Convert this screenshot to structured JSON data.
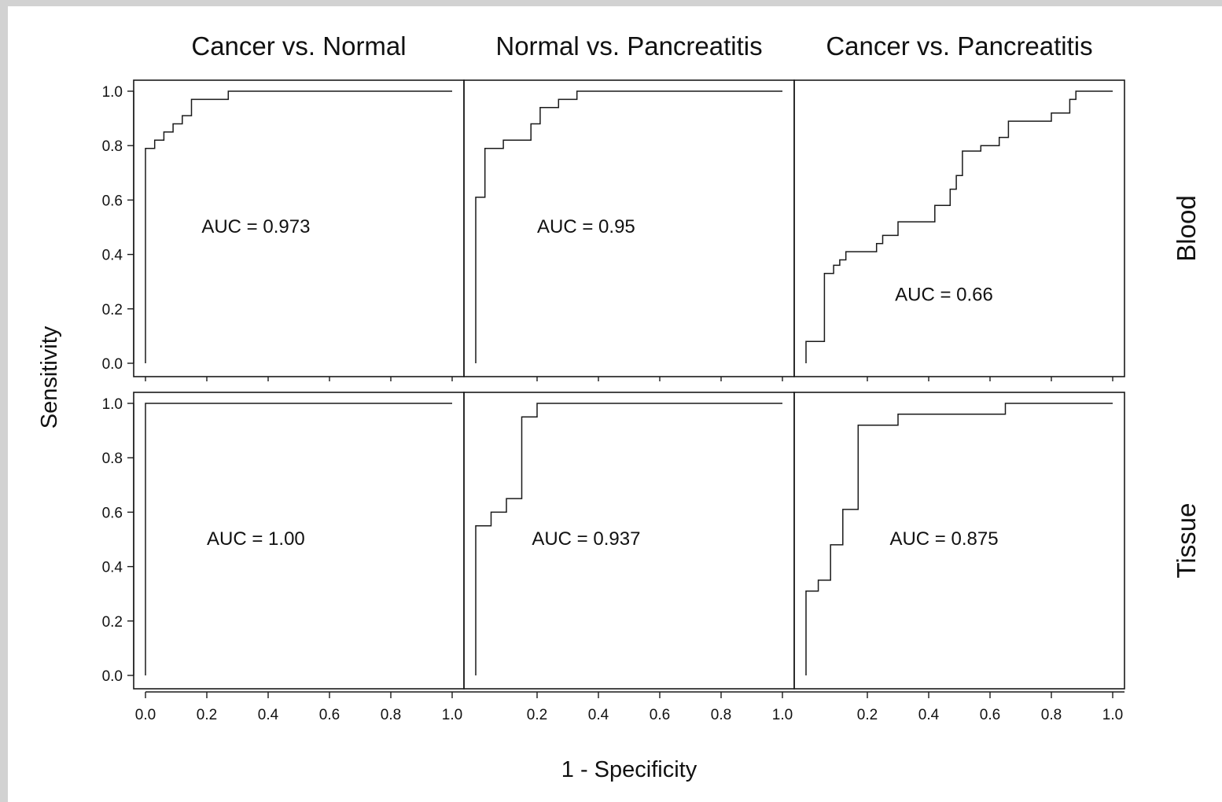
{
  "chart_data": {
    "type": "line",
    "title": "",
    "xlabel": "1 - Specificity",
    "ylabel": "Sensitivity",
    "xlim": [
      0,
      1
    ],
    "ylim": [
      0,
      1
    ],
    "grid": false,
    "columns": [
      "Cancer vs. Normal",
      "Normal vs. Pancreatitis",
      "Cancer vs. Pancreatitis"
    ],
    "rows": [
      "Blood",
      "Tissue"
    ],
    "y_ticks": [
      "0.0",
      "0.2",
      "0.4",
      "0.6",
      "0.8",
      "1.0"
    ],
    "x_ticks_first": [
      "0.0",
      "0.2",
      "0.4",
      "0.6",
      "0.8",
      "1.0"
    ],
    "x_ticks_other": [
      "0.2",
      "0.4",
      "0.6",
      "0.8",
      "1.0"
    ],
    "panels": [
      {
        "row": "Blood",
        "column": "Cancer vs. Normal",
        "auc_label": "AUC = 0.973",
        "points": [
          [
            0,
            0
          ],
          [
            0,
            0.79
          ],
          [
            0.03,
            0.79
          ],
          [
            0.03,
            0.82
          ],
          [
            0.06,
            0.82
          ],
          [
            0.06,
            0.85
          ],
          [
            0.09,
            0.85
          ],
          [
            0.09,
            0.88
          ],
          [
            0.12,
            0.88
          ],
          [
            0.12,
            0.91
          ],
          [
            0.15,
            0.91
          ],
          [
            0.15,
            0.97
          ],
          [
            0.27,
            0.97
          ],
          [
            0.27,
            1.0
          ],
          [
            1.0,
            1.0
          ]
        ]
      },
      {
        "row": "Blood",
        "column": "Normal vs. Pancreatitis",
        "auc_label": "AUC = 0.95",
        "points": [
          [
            0,
            0
          ],
          [
            0,
            0.61
          ],
          [
            0.03,
            0.61
          ],
          [
            0.03,
            0.79
          ],
          [
            0.09,
            0.79
          ],
          [
            0.09,
            0.82
          ],
          [
            0.18,
            0.82
          ],
          [
            0.18,
            0.88
          ],
          [
            0.21,
            0.88
          ],
          [
            0.21,
            0.94
          ],
          [
            0.27,
            0.94
          ],
          [
            0.27,
            0.97
          ],
          [
            0.33,
            0.97
          ],
          [
            0.33,
            1.0
          ],
          [
            1.0,
            1.0
          ]
        ]
      },
      {
        "row": "Blood",
        "column": "Cancer vs. Pancreatitis",
        "auc_label": "AUC = 0.66",
        "points": [
          [
            0,
            0
          ],
          [
            0,
            0.08
          ],
          [
            0.06,
            0.08
          ],
          [
            0.06,
            0.33
          ],
          [
            0.09,
            0.33
          ],
          [
            0.09,
            0.36
          ],
          [
            0.11,
            0.36
          ],
          [
            0.11,
            0.38
          ],
          [
            0.13,
            0.38
          ],
          [
            0.13,
            0.41
          ],
          [
            0.23,
            0.41
          ],
          [
            0.23,
            0.44
          ],
          [
            0.25,
            0.44
          ],
          [
            0.25,
            0.47
          ],
          [
            0.3,
            0.47
          ],
          [
            0.3,
            0.52
          ],
          [
            0.42,
            0.52
          ],
          [
            0.42,
            0.58
          ],
          [
            0.47,
            0.58
          ],
          [
            0.47,
            0.64
          ],
          [
            0.49,
            0.64
          ],
          [
            0.49,
            0.69
          ],
          [
            0.51,
            0.69
          ],
          [
            0.51,
            0.78
          ],
          [
            0.57,
            0.78
          ],
          [
            0.57,
            0.8
          ],
          [
            0.63,
            0.8
          ],
          [
            0.63,
            0.83
          ],
          [
            0.66,
            0.83
          ],
          [
            0.66,
            0.89
          ],
          [
            0.8,
            0.89
          ],
          [
            0.8,
            0.92
          ],
          [
            0.86,
            0.92
          ],
          [
            0.86,
            0.97
          ],
          [
            0.88,
            0.97
          ],
          [
            0.88,
            1.0
          ],
          [
            1.0,
            1.0
          ]
        ]
      },
      {
        "row": "Tissue",
        "column": "Cancer vs. Normal",
        "auc_label": "AUC = 1.00",
        "points": [
          [
            0,
            0
          ],
          [
            0,
            1.0
          ],
          [
            1.0,
            1.0
          ]
        ]
      },
      {
        "row": "Tissue",
        "column": "Normal vs. Pancreatitis",
        "auc_label": "AUC = 0.937",
        "points": [
          [
            0,
            0
          ],
          [
            0,
            0.55
          ],
          [
            0.05,
            0.55
          ],
          [
            0.05,
            0.6
          ],
          [
            0.1,
            0.6
          ],
          [
            0.1,
            0.65
          ],
          [
            0.15,
            0.65
          ],
          [
            0.15,
            0.95
          ],
          [
            0.2,
            0.95
          ],
          [
            0.2,
            1.0
          ],
          [
            1.0,
            1.0
          ]
        ]
      },
      {
        "row": "Tissue",
        "column": "Cancer vs. Pancreatitis",
        "auc_label": "AUC = 0.875",
        "points": [
          [
            0,
            0
          ],
          [
            0,
            0.31
          ],
          [
            0.04,
            0.31
          ],
          [
            0.04,
            0.35
          ],
          [
            0.08,
            0.35
          ],
          [
            0.08,
            0.48
          ],
          [
            0.12,
            0.48
          ],
          [
            0.12,
            0.61
          ],
          [
            0.17,
            0.61
          ],
          [
            0.17,
            0.92
          ],
          [
            0.3,
            0.92
          ],
          [
            0.3,
            0.96
          ],
          [
            0.65,
            0.96
          ],
          [
            0.65,
            1.0
          ],
          [
            1.0,
            1.0
          ]
        ]
      }
    ]
  }
}
